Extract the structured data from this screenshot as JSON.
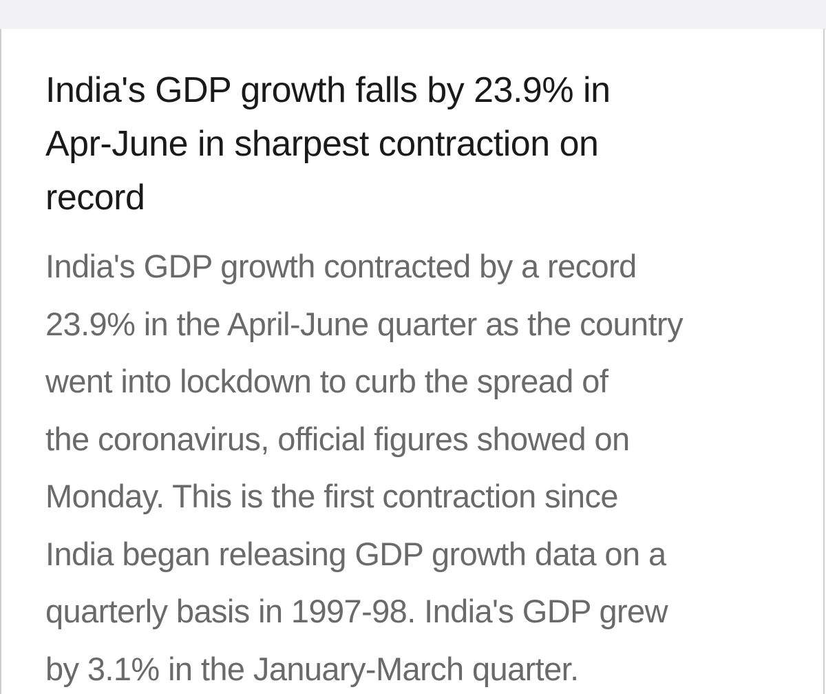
{
  "article": {
    "headline_lines": [
      "India's GDP growth falls by 23.9% in",
      "Apr-June in sharpest contraction on",
      "record"
    ],
    "summary_lines": [
      "India's GDP growth contracted by a record",
      "23.9% in the April-June quarter as the country",
      "went into lockdown to curb the spread of",
      "the coronavirus, official figures showed on",
      "Monday. This is the first contraction since",
      "India began releasing GDP growth data on a",
      "quarterly basis in 1997-98. India's GDP grew",
      "by 3.1% in the January-March quarter."
    ]
  }
}
